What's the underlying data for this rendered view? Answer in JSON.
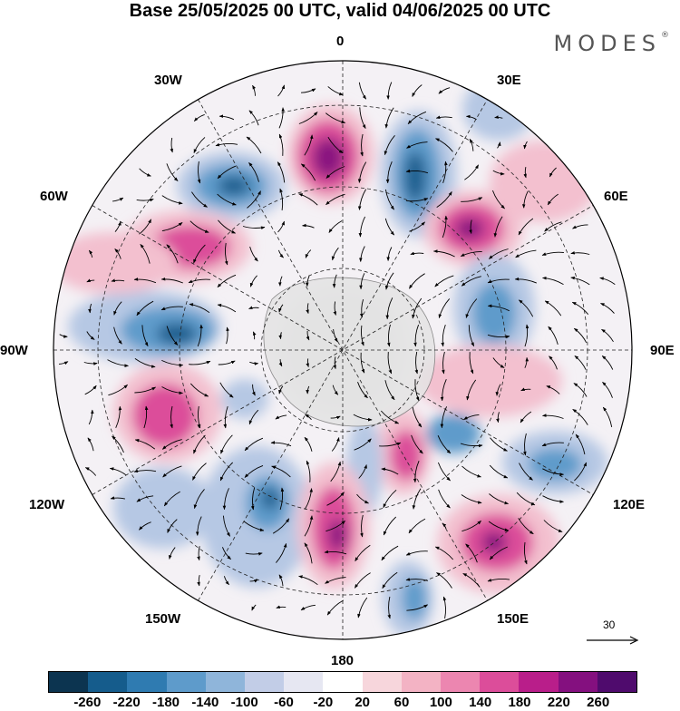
{
  "title": "Base 25/05/2025 00 UTC, valid 04/06/2025 00 UTC",
  "brand": "MODES",
  "brand_mark": "®",
  "map": {
    "projection": "south-polar-stereographic",
    "longitude_labels": {
      "top": "0",
      "top_right": "30E",
      "right_upper": "60E",
      "right": "90E",
      "right_lower": "120E",
      "bottom_right": "150E",
      "bottom": "180",
      "bottom_left": "150W",
      "left_lower": "120W",
      "left": "90W",
      "left_upper": "60W",
      "top_left": "30W"
    },
    "reference_vector": "30"
  },
  "colorbar": {
    "ticks": [
      "-260",
      "-220",
      "-180",
      "-140",
      "-100",
      "-60",
      "-20",
      "20",
      "60",
      "100",
      "140",
      "180",
      "220",
      "260"
    ],
    "colors": [
      "#0c3450",
      "#155c8c",
      "#2f7bb1",
      "#5e9bcb",
      "#8fb5da",
      "#c2cde7",
      "#e6e7f2",
      "#ffffff",
      "#f7d6dc",
      "#f3b3c4",
      "#ec86b0",
      "#dc4d9a",
      "#b91e8a",
      "#84107f",
      "#4f0b6d"
    ]
  },
  "anomaly_colors": {
    "neg_strong": "#1f5f8f",
    "neg_mid": "#5e9bcb",
    "neg_weak": "#b6c8e4",
    "pos_strong": "#8a1280",
    "pos_mid": "#dc4d9a",
    "pos_weak": "#f3c0cf",
    "land": "#dcdcdc"
  }
}
